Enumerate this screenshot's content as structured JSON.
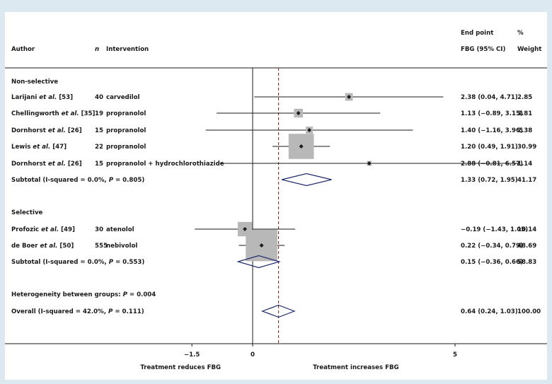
{
  "chart_data": {
    "type": "forest",
    "headers": {
      "author": "Author",
      "n": "n",
      "intervention": "Intervention",
      "endpoint": "End point",
      "effect": "FBG (95% CI)",
      "pct": "%",
      "weight": "Weight"
    },
    "x_ticks": [
      {
        "value": -1.5,
        "label": "−1.5"
      },
      {
        "value": 0,
        "label": "0"
      },
      {
        "value": 5,
        "label": "5"
      }
    ],
    "xlim": [
      -6.3,
      7.3
    ],
    "reference_line": 0,
    "overall_line": 0.64,
    "x_axis_captions": {
      "left": "Treatment reduces FBG",
      "right": "Treatment increases FBG"
    },
    "groups": [
      {
        "heading": "Non-selective",
        "studies": [
          {
            "author": "Larijani",
            "etal": " et al.",
            "ref": " [53]",
            "n": "40",
            "intervention": "carvedilol",
            "estimate": 2.38,
            "lower": 0.04,
            "upper": 4.71,
            "ci_text": "2.38 (0.04, 4.71)",
            "weight": 2.85,
            "weight_text": "2.85"
          },
          {
            "author": "Chellingworth",
            "etal": " et al.",
            "ref": " [35]",
            "n": "19",
            "intervention": "propranolol",
            "estimate": 1.13,
            "lower": -0.89,
            "upper": 3.15,
            "ci_text": "1.13 (−0.89, 3.15)",
            "weight": 3.81,
            "weight_text": "3.81"
          },
          {
            "author": "Dornhorst",
            "etal": " et al.",
            "ref": " [26]",
            "n": "15",
            "intervention": "propranolol",
            "estimate": 1.4,
            "lower": -1.16,
            "upper": 3.96,
            "ci_text": "1.40 (−1.16, 3.96)",
            "weight": 2.38,
            "weight_text": "2.38"
          },
          {
            "author": "Lewis",
            "etal": " et al.",
            "ref": " [47]",
            "n": "22",
            "intervention": "propranolol",
            "estimate": 1.2,
            "lower": 0.49,
            "upper": 1.91,
            "ci_text": "1.20 (0.49, 1.91)",
            "weight": 30.99,
            "weight_text": "30.99"
          },
          {
            "author": "Dornhorst",
            "etal": " et al.",
            "ref": " [26]",
            "n": "15",
            "intervention": "propranolol + hydrochlorothiazide",
            "estimate": 2.88,
            "lower": -0.81,
            "upper": 6.57,
            "ci_text": "2.88 (−0.81, 6.57)",
            "weight": 1.14,
            "weight_text": "1.14"
          }
        ],
        "subtotal": {
          "label": "Subtotal  (I-squared = 0.0%, ",
          "p_label": "P",
          "p_value": " = 0.805)",
          "estimate": 1.33,
          "lower": 0.72,
          "upper": 1.95,
          "ci_text": "1.33 (0.72, 1.95)",
          "weight_text": "41.17"
        }
      },
      {
        "heading": "Selective",
        "studies": [
          {
            "author": "Profozic",
            "etal": " et al.",
            "ref": " [49]",
            "n": "30",
            "intervention": "atenolol",
            "estimate": -0.19,
            "lower": -1.43,
            "upper": 1.05,
            "ci_text": "−0.19 (−1.43, 1.05)",
            "weight": 10.14,
            "weight_text": "10.14"
          },
          {
            "author": "de Boer",
            "etal": " et al.",
            "ref": " [50]",
            "n": "555",
            "intervention": "nebivolol",
            "estimate": 0.22,
            "lower": -0.34,
            "upper": 0.79,
            "ci_text": "0.22 (−0.34, 0.79)",
            "weight": 48.69,
            "weight_text": "48.69"
          }
        ],
        "subtotal": {
          "label": "Subtotal  (I-squared = 0.0%, ",
          "p_label": "P",
          "p_value": " = 0.553)",
          "estimate": 0.15,
          "lower": -0.36,
          "upper": 0.66,
          "ci_text": "0.15 (−0.36, 0.66)",
          "weight_text": "58.83"
        }
      }
    ],
    "heterogeneity": {
      "label": "Heterogeneity between groups: ",
      "p_label": "P",
      "p_value": " = 0.004"
    },
    "overall": {
      "label": "Overall  (I-squared = 42.0%, ",
      "p_label": "P",
      "p_value": " = 0.111)",
      "estimate": 0.64,
      "lower": 0.24,
      "upper": 1.03,
      "ci_text": "0.64 (0.24, 1.03)",
      "weight_text": "100.00"
    },
    "colors": {
      "marker_box": "#b8b8b8",
      "diamond": "#1f2a6b",
      "line": "#1a1a1a",
      "background": "#dde9f1"
    }
  }
}
